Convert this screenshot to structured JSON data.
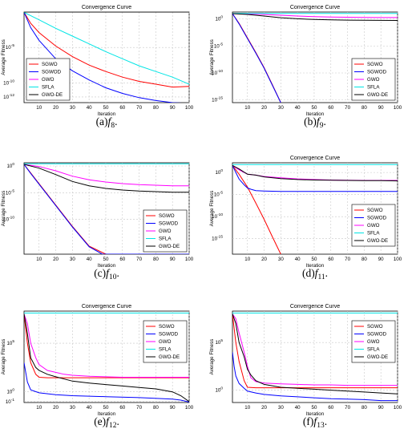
{
  "chart_data": [
    {
      "type": "line",
      "title": "Convergence Curve",
      "xlabel": "Iteration",
      "ylabel": "Average Fitness",
      "yscale": "log",
      "xlim": [
        1,
        100
      ],
      "ylim_log10": [
        -12.8,
        0
      ],
      "xticks": [
        "10",
        "20",
        "30",
        "40",
        "50",
        "60",
        "70",
        "80",
        "90",
        "100"
      ],
      "yticks": [
        {
          "text": "10",
          "exp": "-5",
          "v": -5
        },
        {
          "text": "10",
          "exp": "-10",
          "v": -10
        },
        {
          "text": "10",
          "exp": "-12",
          "v": -12
        }
      ],
      "legend": "bottom-left",
      "caption": {
        "label": "(a)",
        "func": "f",
        "sub": "8",
        "tail": "."
      },
      "series": [
        {
          "name": "SGWO",
          "color": "#ff0000",
          "x": [
            1,
            5,
            10,
            20,
            30,
            40,
            50,
            60,
            70,
            80,
            90,
            100
          ],
          "y": [
            -0.05,
            -1.6,
            -2.9,
            -4.8,
            -6.3,
            -7.5,
            -8.4,
            -9.2,
            -9.8,
            -10.2,
            -10.6,
            -10.5
          ]
        },
        {
          "name": "SGWOD",
          "color": "#0000ff",
          "x": [
            1,
            5,
            10,
            20,
            30,
            40,
            50,
            60,
            70,
            80,
            90,
            100
          ],
          "y": [
            -0.05,
            -2.2,
            -4.0,
            -6.6,
            -8.3,
            -9.6,
            -10.7,
            -11.5,
            -12.1,
            -12.5,
            -12.8,
            -12.9
          ]
        },
        {
          "name": "GWO",
          "color": "#ff00ff",
          "x": [
            1,
            100
          ],
          "y": [
            0,
            0
          ]
        },
        {
          "name": "SFLA",
          "color": "#00e5e5",
          "x": [
            1,
            10,
            20,
            30,
            40,
            50,
            60,
            70,
            80,
            90,
            100
          ],
          "y": [
            -0.05,
            -1.1,
            -2.3,
            -3.4,
            -4.5,
            -5.6,
            -6.6,
            -7.6,
            -8.4,
            -9.2,
            -10.2
          ]
        },
        {
          "name": "GWO-DE",
          "color": "#000000",
          "x": [
            1,
            100
          ],
          "y": [
            0,
            0
          ]
        }
      ]
    },
    {
      "type": "line",
      "title": "Convergence Curve",
      "xlabel": "Iteration",
      "ylabel": "Average Fitness",
      "yscale": "log",
      "xlim": [
        1,
        100
      ],
      "ylim_log10": [
        -15.5,
        1.3
      ],
      "xticks": [
        "10",
        "20",
        "30",
        "40",
        "50",
        "60",
        "70",
        "80",
        "90",
        "100"
      ],
      "yticks": [
        {
          "text": "10",
          "exp": "0",
          "v": 0
        },
        {
          "text": "10",
          "exp": "-5",
          "v": -5
        },
        {
          "text": "10",
          "exp": "-10",
          "v": -10
        },
        {
          "text": "10",
          "exp": "-15",
          "v": -15
        }
      ],
      "legend": "bottom-right",
      "caption": {
        "label": "(b)",
        "func": "f",
        "sub": "9",
        "tail": "."
      },
      "series": [
        {
          "name": "SGWO",
          "color": "#ff0000",
          "x": [
            1,
            5,
            10,
            15,
            20,
            25,
            30
          ],
          "y": [
            1,
            -0.8,
            -3.5,
            -6.2,
            -9.0,
            -12.2,
            -15.5
          ]
        },
        {
          "name": "SGWOD",
          "color": "#0000ff",
          "x": [
            1,
            5,
            10,
            15,
            20,
            25,
            30
          ],
          "y": [
            1,
            -0.9,
            -3.6,
            -6.3,
            -9.1,
            -12.3,
            -15.5
          ]
        },
        {
          "name": "GWO",
          "color": "#ff00ff",
          "x": [
            1,
            10,
            20,
            30,
            40,
            50,
            60,
            70,
            80,
            90,
            100
          ],
          "y": [
            1,
            0.95,
            0.85,
            0.7,
            0.55,
            0.45,
            0.38,
            0.33,
            0.3,
            0.28,
            0.27
          ]
        },
        {
          "name": "SFLA",
          "color": "#00e5e5",
          "x": [
            1,
            100
          ],
          "y": [
            1.05,
            1.05
          ]
        },
        {
          "name": "GWO-DE",
          "color": "#000000",
          "x": [
            1,
            10,
            20,
            30,
            40,
            50,
            60,
            70,
            80,
            90,
            100
          ],
          "y": [
            1,
            0.85,
            0.55,
            0.25,
            0.05,
            -0.08,
            -0.15,
            -0.2,
            -0.23,
            -0.25,
            -0.26
          ]
        }
      ]
    },
    {
      "type": "line",
      "title": "",
      "xlabel": "Iteration",
      "ylabel": "Average Fitness",
      "yscale": "log",
      "xlim": [
        1,
        100
      ],
      "ylim_log10": [
        -16.5,
        0.6
      ],
      "xticks": [
        "10",
        "20",
        "30",
        "40",
        "50",
        "60",
        "70",
        "80",
        "90",
        "100"
      ],
      "yticks": [
        {
          "text": "10",
          "exp": "0",
          "v": 0
        },
        {
          "text": "10",
          "exp": "-5",
          "v": -5
        },
        {
          "text": "10",
          "exp": "-10",
          "v": -10
        }
      ],
      "legend": "bottom-right",
      "caption": {
        "label": "(c)",
        "func": "f",
        "sub": "10",
        "tail": "."
      },
      "series": [
        {
          "name": "SGWO",
          "color": "#ff0000",
          "x": [
            1,
            5,
            10,
            20,
            30,
            40,
            50
          ],
          "y": [
            0.3,
            -1.3,
            -3.3,
            -7.3,
            -11.3,
            -15.0,
            -16.5
          ]
        },
        {
          "name": "SGWOD",
          "color": "#0000ff",
          "x": [
            1,
            5,
            10,
            20,
            30,
            40,
            48,
            100
          ],
          "y": [
            0.3,
            -1.4,
            -3.4,
            -7.4,
            -11.4,
            -15.1,
            -16.5,
            -16.5
          ]
        },
        {
          "name": "GWO",
          "color": "#ff00ff",
          "x": [
            1,
            10,
            20,
            30,
            40,
            50,
            60,
            70,
            80,
            90,
            100
          ],
          "y": [
            0.3,
            -0.1,
            -0.9,
            -1.9,
            -2.6,
            -3.0,
            -3.3,
            -3.5,
            -3.6,
            -3.7,
            -3.7
          ]
        },
        {
          "name": "SFLA",
          "color": "#00e5e5",
          "x": [
            1,
            100
          ],
          "y": [
            0.4,
            0.4
          ]
        },
        {
          "name": "GWO-DE",
          "color": "#000000",
          "x": [
            1,
            10,
            20,
            30,
            40,
            50,
            60,
            70,
            80,
            90,
            100
          ],
          "y": [
            0.3,
            -0.4,
            -1.6,
            -2.9,
            -3.7,
            -4.2,
            -4.5,
            -4.7,
            -4.8,
            -4.9,
            -4.9
          ]
        }
      ]
    },
    {
      "type": "line",
      "title": "Convergence Curve",
      "xlabel": "Iteration",
      "ylabel": "Average Fitness",
      "yscale": "log",
      "xlim": [
        1,
        100
      ],
      "ylim_log10": [
        -18.5,
        2.2
      ],
      "xticks": [
        "10",
        "20",
        "30",
        "40",
        "50",
        "60",
        "70",
        "80",
        "90",
        "100"
      ],
      "yticks": [
        {
          "text": "10",
          "exp": "0",
          "v": 0
        },
        {
          "text": "10",
          "exp": "-5",
          "v": -5
        },
        {
          "text": "10",
          "exp": "-10",
          "v": -10
        },
        {
          "text": "10",
          "exp": "-15",
          "v": -15
        }
      ],
      "legend": "right",
      "caption": {
        "label": "(d)",
        "func": "f",
        "sub": "11",
        "tail": "."
      },
      "series": [
        {
          "name": "SGWO",
          "color": "#ff0000",
          "x": [
            1,
            5,
            10,
            15,
            20,
            25,
            30
          ],
          "y": [
            1.6,
            -0.4,
            -3.3,
            -6.9,
            -10.6,
            -14.6,
            -18.5
          ]
        },
        {
          "name": "SGWOD",
          "color": "#0000ff",
          "x": [
            1,
            3,
            5,
            8,
            10,
            12,
            15,
            20,
            30,
            50,
            70,
            100
          ],
          "y": [
            1.6,
            0,
            -1.5,
            -2.8,
            -3.5,
            -3.8,
            -4.1,
            -4.2,
            -4.3,
            -4.3,
            -4.3,
            -4.3
          ]
        },
        {
          "name": "GWO",
          "color": "#ff00ff",
          "x": [
            1,
            5,
            10,
            15,
            20,
            30,
            40,
            50,
            60,
            70,
            80,
            90,
            100
          ],
          "y": [
            1.6,
            0.6,
            -0.4,
            -0.6,
            -0.9,
            -1.2,
            -1.45,
            -1.6,
            -1.7,
            -1.75,
            -1.8,
            -1.8,
            -1.8
          ]
        },
        {
          "name": "SFLA",
          "color": "#00e5e5",
          "x": [
            1,
            100
          ],
          "y": [
            1.8,
            1.8
          ]
        },
        {
          "name": "GWO-DE",
          "color": "#000000",
          "x": [
            1,
            5,
            10,
            15,
            20,
            30,
            40,
            50,
            60,
            70,
            80,
            90,
            100
          ],
          "y": [
            1.6,
            0.8,
            -0.4,
            -0.6,
            -1.0,
            -1.4,
            -1.6,
            -1.7,
            -1.75,
            -1.8,
            -1.85,
            -1.85,
            -1.9
          ]
        }
      ]
    },
    {
      "type": "line",
      "title": "Convergence Curve",
      "xlabel": "Iteration",
      "ylabel": "Average Fitness",
      "yscale": "log",
      "xlim": [
        1,
        100
      ],
      "ylim_log10": [
        -1.1,
        8.3
      ],
      "xticks": [
        "10",
        "20",
        "30",
        "40",
        "50",
        "60",
        "70",
        "80",
        "90",
        "100"
      ],
      "yticks": [
        {
          "text": "10",
          "exp": "5",
          "v": 5
        },
        {
          "text": "10",
          "exp": "0",
          "v": 0
        },
        {
          "text": "10",
          "exp": "-1",
          "v": -1
        }
      ],
      "legend": "top-right",
      "caption": {
        "label": "(e)",
        "func": "f",
        "sub": "12",
        "tail": "."
      },
      "series": [
        {
          "name": "SGWO",
          "color": "#ff0000",
          "x": [
            1,
            3,
            5,
            8,
            10,
            15,
            20,
            30,
            50,
            70,
            100
          ],
          "y": [
            8,
            5,
            3,
            1.8,
            1.5,
            1.45,
            1.45,
            1.45,
            1.45,
            1.45,
            1.45
          ]
        },
        {
          "name": "SGWOD",
          "color": "#0000ff",
          "x": [
            1,
            2,
            3,
            5,
            10,
            20,
            30,
            50,
            70,
            90,
            95,
            100
          ],
          "y": [
            3,
            2,
            1,
            0.2,
            -0.1,
            -0.3,
            -0.4,
            -0.5,
            -0.6,
            -0.75,
            -0.85,
            -1.05
          ]
        },
        {
          "name": "GWO",
          "color": "#ff00ff",
          "x": [
            1,
            3,
            5,
            8,
            10,
            15,
            20,
            25,
            30,
            40,
            50,
            60,
            70,
            80,
            90,
            100
          ],
          "y": [
            8,
            7,
            5,
            3.5,
            2.8,
            2.2,
            2.0,
            1.8,
            1.7,
            1.6,
            1.55,
            1.5,
            1.5,
            1.5,
            1.5,
            1.5
          ]
        },
        {
          "name": "SFLA",
          "color": "#00e5e5",
          "x": [
            1,
            100
          ],
          "y": [
            8.1,
            8.1
          ]
        },
        {
          "name": "GWO-DE",
          "color": "#000000",
          "x": [
            1,
            3,
            5,
            8,
            10,
            15,
            20,
            30,
            40,
            50,
            60,
            70,
            80,
            90,
            95,
            100
          ],
          "y": [
            8,
            6,
            3.5,
            2.5,
            2.2,
            1.8,
            1.55,
            1.1,
            0.9,
            0.75,
            0.6,
            0.45,
            0.3,
            0.0,
            -0.4,
            -1.0
          ]
        }
      ]
    },
    {
      "type": "line",
      "title": "Convergence Curve",
      "xlabel": "Iteration",
      "ylabel": "Average Fitness",
      "yscale": "log",
      "xlim": [
        1,
        100
      ],
      "ylim_log10": [
        -1.3,
        8.3
      ],
      "xticks": [
        "10",
        "20",
        "30",
        "40",
        "50",
        "60",
        "70",
        "80",
        "90",
        "100"
      ],
      "yticks": [
        {
          "text": "10",
          "exp": "5",
          "v": 5
        },
        {
          "text": "10",
          "exp": "0",
          "v": 0
        }
      ],
      "legend": "top-right",
      "caption": {
        "label": "(f)",
        "func": "f",
        "sub": "13",
        "tail": "."
      },
      "series": [
        {
          "name": "SGWO",
          "color": "#ff0000",
          "x": [
            1,
            3,
            5,
            8,
            10,
            15,
            20,
            30,
            50,
            70,
            100
          ],
          "y": [
            8,
            5,
            3,
            1.0,
            0.3,
            0.25,
            0.25,
            0.25,
            0.25,
            0.25,
            0.25
          ]
        },
        {
          "name": "SGWOD",
          "color": "#0000ff",
          "x": [
            1,
            2,
            3,
            5,
            8,
            10,
            15,
            20,
            30,
            40,
            50,
            60,
            70,
            80,
            90,
            100
          ],
          "y": [
            4,
            2.5,
            1.5,
            0.7,
            0.2,
            -0.1,
            -0.3,
            -0.45,
            -0.6,
            -0.7,
            -0.8,
            -0.9,
            -0.95,
            -1.0,
            -1.1,
            -1.1
          ]
        },
        {
          "name": "GWO",
          "color": "#ff00ff",
          "x": [
            1,
            3,
            5,
            8,
            10,
            12,
            15,
            20,
            25,
            30,
            40,
            50,
            60,
            70,
            80,
            90,
            100
          ],
          "y": [
            8,
            7.5,
            6,
            4,
            2.5,
            1.3,
            0.9,
            0.75,
            0.7,
            0.65,
            0.6,
            0.55,
            0.55,
            0.5,
            0.5,
            0.5,
            0.5
          ]
        },
        {
          "name": "SFLA",
          "color": "#00e5e5",
          "x": [
            1,
            100
          ],
          "y": [
            8.1,
            8.1
          ]
        },
        {
          "name": "GWO-DE",
          "color": "#000000",
          "x": [
            1,
            3,
            5,
            8,
            10,
            12,
            15,
            20,
            30,
            40,
            50,
            60,
            70,
            80,
            90,
            100
          ],
          "y": [
            8,
            7,
            5,
            3.5,
            2.2,
            1.6,
            1.0,
            0.6,
            0.3,
            0.2,
            0.1,
            0.0,
            -0.1,
            -0.2,
            -0.3,
            -0.4
          ]
        }
      ]
    }
  ]
}
